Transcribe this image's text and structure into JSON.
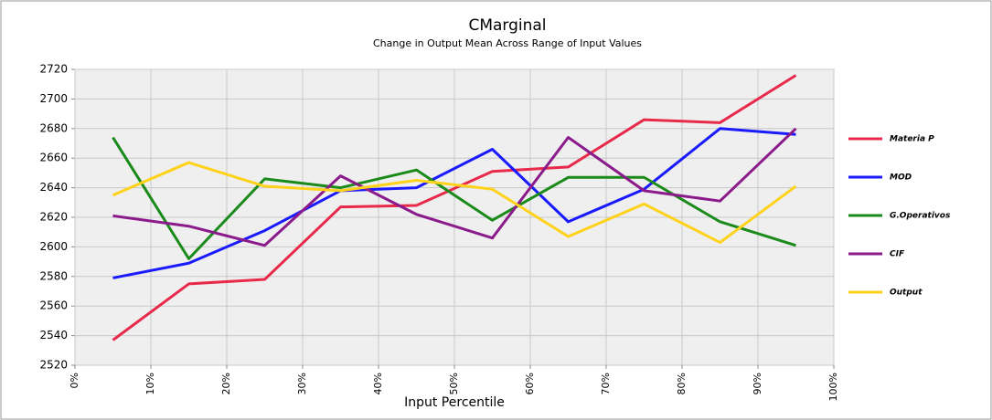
{
  "chart_data": {
    "type": "line",
    "title": "CMarginal",
    "subtitle": "Change in Output Mean Across Range of Input Values",
    "x_label": "Input Percentile",
    "x": [
      5,
      15,
      25,
      35,
      45,
      55,
      65,
      75,
      85,
      95
    ],
    "xlim": [
      0,
      100
    ],
    "xticks": [
      {
        "value": 0,
        "label": "0%"
      },
      {
        "value": 10,
        "label": "10%"
      },
      {
        "value": 20,
        "label": "20%"
      },
      {
        "value": 30,
        "label": "30%"
      },
      {
        "value": 40,
        "label": "40%"
      },
      {
        "value": 50,
        "label": "50%"
      },
      {
        "value": 60,
        "label": "60%"
      },
      {
        "value": 70,
        "label": "70%"
      },
      {
        "value": 80,
        "label": "80%"
      },
      {
        "value": 90,
        "label": "90%"
      },
      {
        "value": 100,
        "label": "100%"
      }
    ],
    "ylim": [
      2520,
      2720
    ],
    "yticks": [
      2520,
      2540,
      2560,
      2580,
      2600,
      2620,
      2640,
      2660,
      2680,
      2700,
      2720
    ],
    "grid": true,
    "legend": "right",
    "series": [
      {
        "name": "Materia P",
        "color": "#e8294a",
        "values": [
          2537,
          2575,
          2578,
          2627,
          2628,
          2651,
          2654,
          2686,
          2684,
          2716
        ]
      },
      {
        "name": "MOD",
        "color": "#1a1aff",
        "values": [
          2579,
          2589,
          2611,
          2638,
          2640,
          2666,
          2617,
          2639,
          2680,
          2676
        ]
      },
      {
        "name": "G.Operativos",
        "color": "#1a8a1a",
        "values": [
          2674,
          2592,
          2646,
          2640,
          2652,
          2618,
          2647,
          2647,
          2617,
          2601
        ]
      },
      {
        "name": "CIF",
        "color": "#8b1a8b",
        "values": [
          2621,
          2614,
          2601,
          2648,
          2622,
          2606,
          2674,
          2638,
          2631,
          2680
        ]
      },
      {
        "name": "Output",
        "color": "#ffd21a",
        "values": [
          2635,
          2657,
          2641,
          2638,
          2645,
          2639,
          2607,
          2629,
          2603,
          2641
        ]
      }
    ]
  }
}
